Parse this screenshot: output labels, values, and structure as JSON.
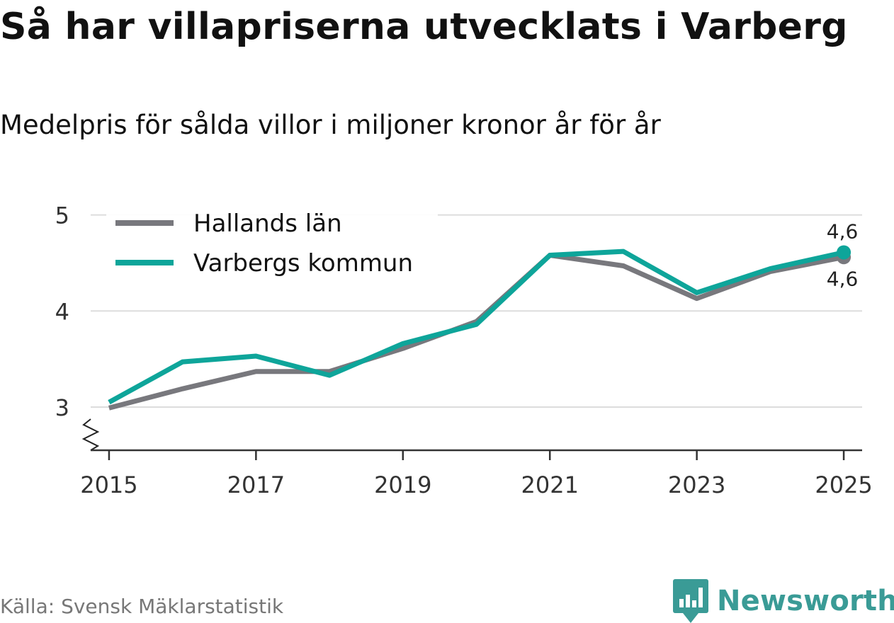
{
  "header": {
    "title": "Så har villapriserna utvecklats i Varberg",
    "subtitle": "Medelpris för sålda villor i miljoner kronor år för år"
  },
  "footer": {
    "source": "Källa: Svensk Mäklarstatistik",
    "brand": "Newsworthy",
    "brand_color": "#3a9b96"
  },
  "chart_data": {
    "type": "line",
    "title": "Så har villapriserna utvecklats i Varberg",
    "subtitle": "Medelpris för sålda villor i miljoner kronor år för år",
    "xlabel": "",
    "ylabel": "",
    "x": [
      2015,
      2016,
      2017,
      2018,
      2019,
      2020,
      2021,
      2022,
      2023,
      2024,
      2025
    ],
    "x_ticks": [
      "2015",
      "2017",
      "2019",
      "2021",
      "2023",
      "2025"
    ],
    "x_tick_values": [
      2015,
      2017,
      2019,
      2021,
      2023,
      2025
    ],
    "y_ticks": [
      "3",
      "4",
      "5"
    ],
    "y_tick_values": [
      3,
      4,
      5
    ],
    "ylim": [
      2.55,
      5.1
    ],
    "xlim": [
      2014.75,
      2025.25
    ],
    "grid": true,
    "legend_position": "top-left",
    "series": [
      {
        "name": "Hallands län",
        "color": "#78787d",
        "values": [
          2.99,
          3.19,
          3.37,
          3.37,
          3.61,
          3.89,
          4.58,
          4.47,
          4.13,
          4.41,
          4.56
        ],
        "end_label": "4,6"
      },
      {
        "name": "Varbergs kommun",
        "color": "#0ea59a",
        "values": [
          3.05,
          3.47,
          3.53,
          3.33,
          3.66,
          3.86,
          4.58,
          4.62,
          4.19,
          4.44,
          4.61
        ],
        "end_label": "4,6"
      }
    ]
  }
}
